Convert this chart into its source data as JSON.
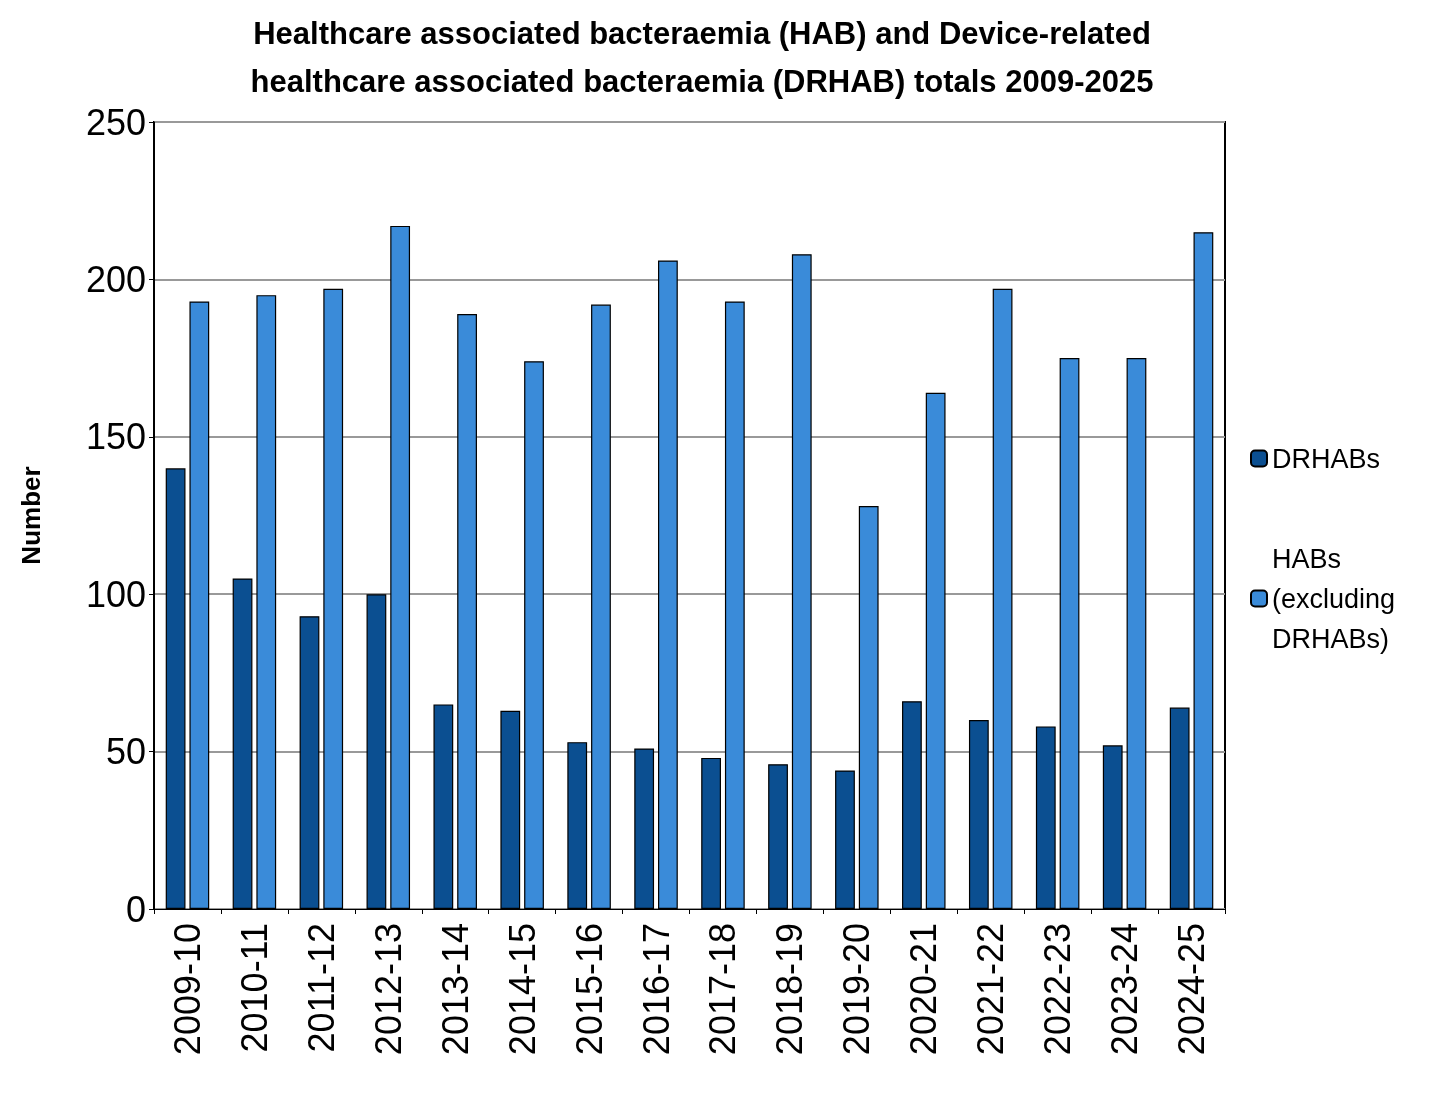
{
  "chart_data": {
    "type": "bar",
    "title": "Healthcare associated bacteraemia (HAB) and Device-related\nhealthcare associated bacteraemia (DRHAB) totals 2009-2025",
    "ylabel": "Number",
    "categories": [
      "2009-10",
      "2010-11",
      "2011-12",
      "2012-13",
      "2013-14",
      "2014-15",
      "2015-16",
      "2016-17",
      "2017-18",
      "2018-19",
      "2019-20",
      "2020-21",
      "2021-22",
      "2022-23",
      "2023-24",
      "2024-25"
    ],
    "series": [
      {
        "name": "DRHABs",
        "color": "#0b4f91",
        "values": [
          140,
          105,
          93,
          100,
          65,
          63,
          53,
          51,
          48,
          46,
          44,
          66,
          60,
          58,
          52,
          64
        ]
      },
      {
        "name": "HABs (excluding DRHABs)",
        "color": "#3a8bd9",
        "values": [
          193,
          195,
          197,
          217,
          189,
          174,
          192,
          206,
          193,
          208,
          128,
          164,
          197,
          175,
          175,
          215
        ]
      }
    ],
    "ylim": [
      0,
      250
    ],
    "yticks": [
      0,
      50,
      100,
      150,
      200,
      250
    ],
    "grid": "y",
    "legend": "right"
  }
}
